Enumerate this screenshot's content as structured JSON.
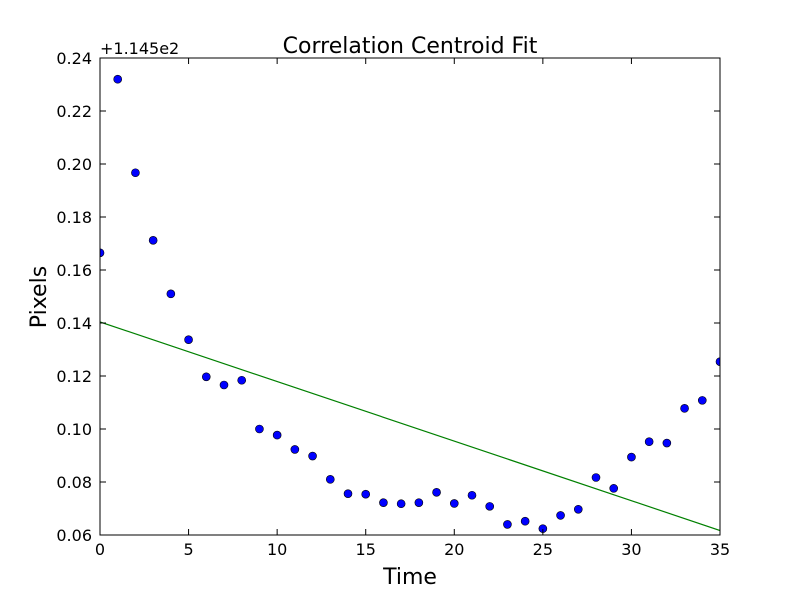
{
  "chart_data": {
    "type": "scatter",
    "title": "Correlation Centroid Fit",
    "xlabel": "Time",
    "ylabel": "Pixels",
    "y_offset_label": "+1.145e2",
    "xlim": [
      0,
      35
    ],
    "ylim": [
      0.06,
      0.24
    ],
    "grid": false,
    "x_ticks": [
      "0",
      "5",
      "10",
      "15",
      "20",
      "25",
      "30",
      "35"
    ],
    "y_ticks": [
      "0.06",
      "0.08",
      "0.10",
      "0.12",
      "0.14",
      "0.16",
      "0.18",
      "0.20",
      "0.22",
      "0.24"
    ],
    "series": [
      {
        "kind": "points",
        "color": "#0000ff",
        "x": [
          0,
          1,
          2,
          3,
          4,
          5,
          6,
          7,
          8,
          9,
          10,
          11,
          12,
          13,
          14,
          15,
          16,
          17,
          18,
          19,
          20,
          21,
          22,
          23,
          24,
          25,
          26,
          27,
          28,
          29,
          30,
          31,
          32,
          33,
          34,
          35
        ],
        "y": [
          0.1665,
          0.232,
          0.1967,
          0.1712,
          0.151,
          0.1337,
          0.1197,
          0.1166,
          0.1184,
          0.1,
          0.0977,
          0.0923,
          0.0898,
          0.081,
          0.0756,
          0.0754,
          0.0722,
          0.0718,
          0.0722,
          0.0761,
          0.0719,
          0.075,
          0.0708,
          0.064,
          0.0652,
          0.0624,
          0.0674,
          0.0697,
          0.0817,
          0.0776,
          0.0894,
          0.0952,
          0.0947,
          0.1078,
          0.1108,
          0.1254
        ]
      },
      {
        "kind": "line",
        "color": "#008000",
        "x": [
          0,
          35
        ],
        "y": [
          0.1404,
          0.0617
        ]
      }
    ]
  }
}
